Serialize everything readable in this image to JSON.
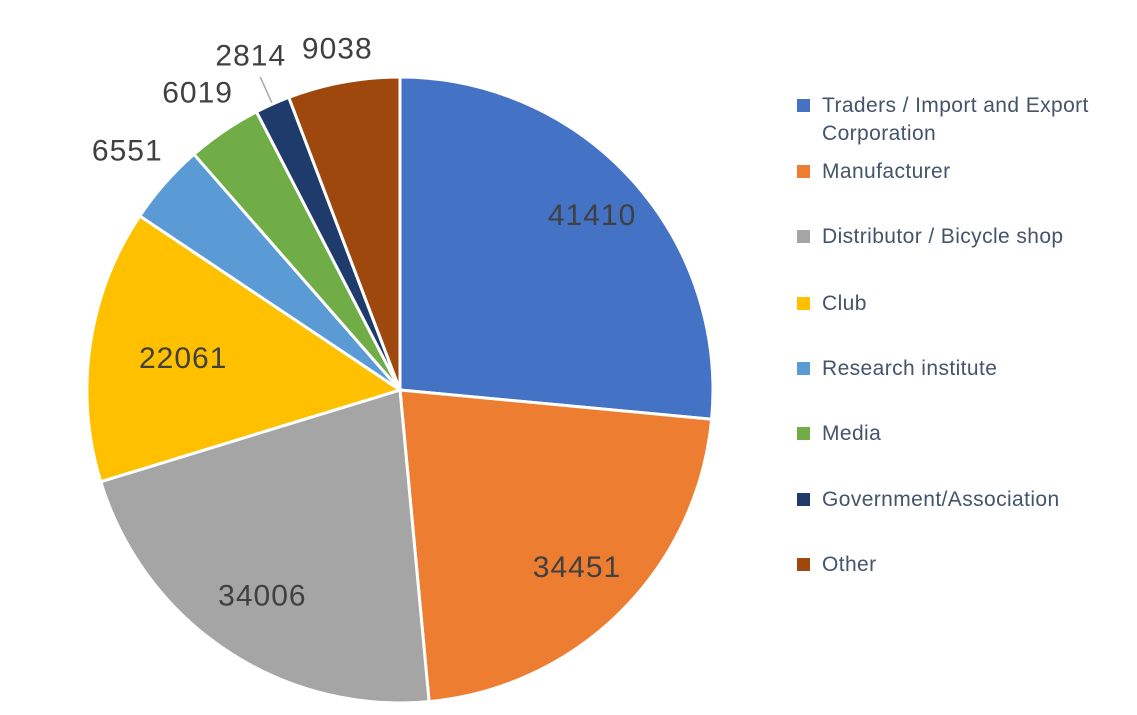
{
  "chart_data": {
    "type": "pie",
    "title": "",
    "data_labels": "values",
    "legend_position": "right",
    "direction": "clockwise",
    "start_angle_deg": 0,
    "background_color": "#FFFFFF",
    "label_color": "#404040",
    "legend_text_color": "#44546A",
    "leader_line_color": "#A6A6A6",
    "series": [
      {
        "name": "Traders / Import and Export Corporation",
        "value": 41410,
        "color": "#4472C4",
        "label_outside": false
      },
      {
        "name": "Manufacturer",
        "value": 34451,
        "color": "#ED7D31",
        "label_outside": false
      },
      {
        "name": "Distributor / Bicycle shop",
        "value": 34006,
        "color": "#A5A5A5",
        "label_outside": false
      },
      {
        "name": "Club",
        "value": 22061,
        "color": "#FFC000",
        "label_outside": false
      },
      {
        "name": "Research institute",
        "value": 6551,
        "color": "#5B9BD5",
        "label_outside": true
      },
      {
        "name": "Media",
        "value": 6019,
        "color": "#70AD47",
        "label_outside": true
      },
      {
        "name": "Government/Association",
        "value": 2814,
        "color": "#1F3B6B",
        "label_outside": true
      },
      {
        "name": "Other",
        "value": 9038,
        "color": "#9E480E",
        "label_outside": true
      }
    ]
  }
}
